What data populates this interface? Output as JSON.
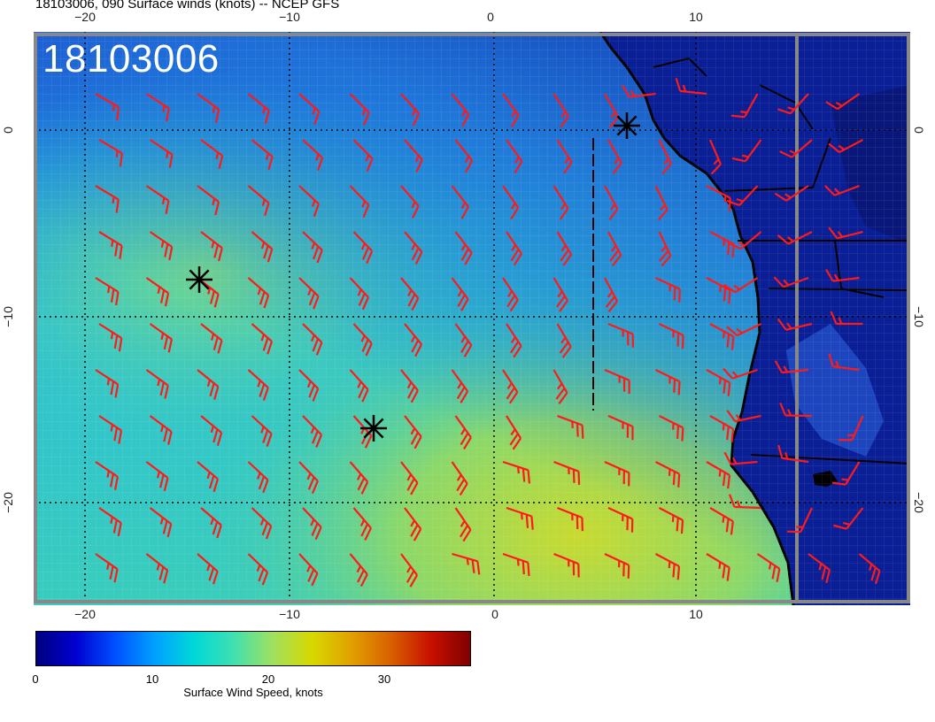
{
  "title": "18103006, 090 Surface winds (knots) -- NCEP GFS",
  "stamp": "18103006",
  "axes": {
    "top_ticks": [
      "−20",
      "−10",
      "0",
      "10"
    ],
    "bottom_ticks": [
      "−20",
      "−10",
      "0",
      "10"
    ],
    "left_ticks": [
      "0",
      "−10",
      "−20"
    ],
    "right_ticks": [
      "0",
      "−10",
      "−20"
    ]
  },
  "colorbar": {
    "ticks": [
      "0",
      "10",
      "20",
      "30"
    ],
    "label": "Surface Wind Speed, knots",
    "colors": [
      "#00007f",
      "#0000d0",
      "#0050ff",
      "#00a0ff",
      "#00d8d8",
      "#40e0b0",
      "#a0e060",
      "#d8d800",
      "#e0a000",
      "#d86000",
      "#c81000",
      "#800000"
    ]
  },
  "colors": {
    "barb": "#ff1a1a",
    "ocean_low": "#1a4fc8",
    "ocean_mid": "#2ec8c8",
    "ocean_high": "#b8d83a",
    "land": "#0a1e96"
  }
}
